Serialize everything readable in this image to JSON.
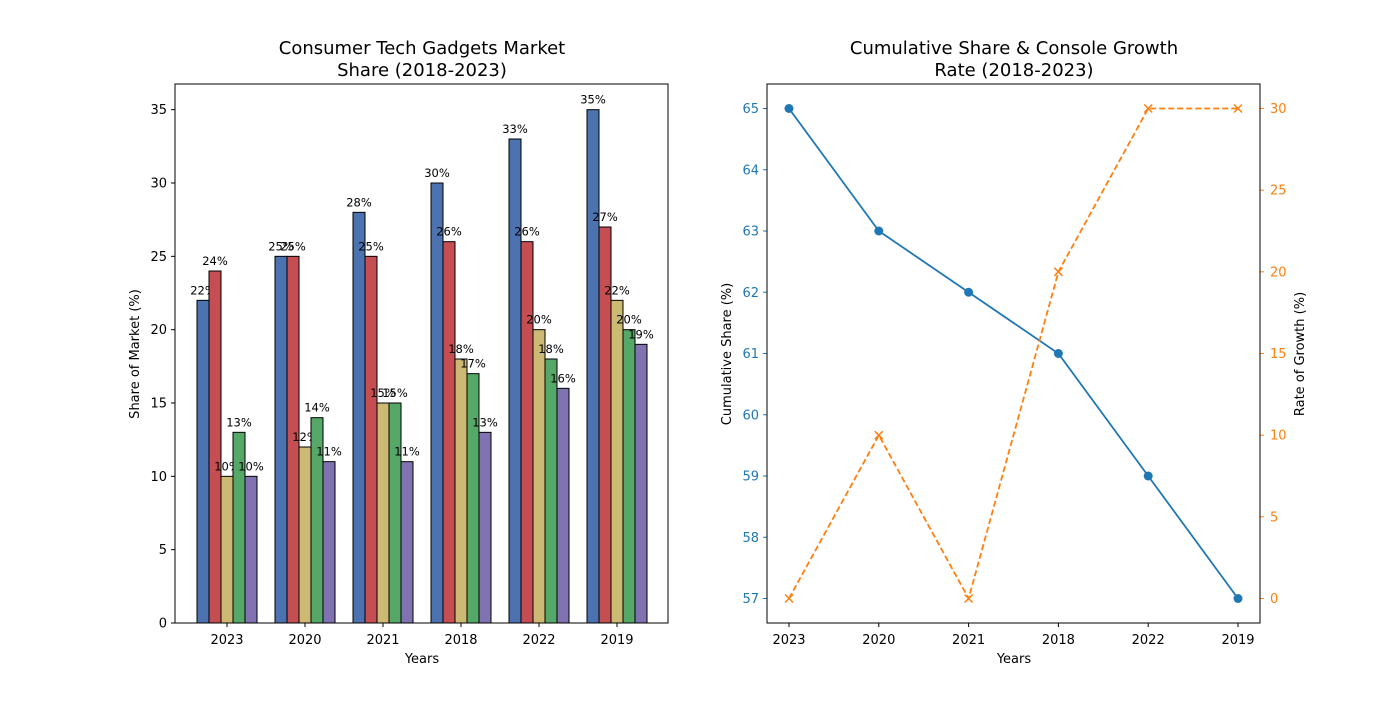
{
  "chart_data": [
    {
      "type": "bar",
      "title_line1": "Consumer Tech Gadgets Market",
      "title_line2": "Share (2018-2023)",
      "xlabel": "Years",
      "ylabel": "Share of Market (%)",
      "ylim": [
        0,
        36.75
      ],
      "yticks": [
        "0",
        "5",
        "10",
        "15",
        "20",
        "25",
        "30",
        "35"
      ],
      "categories": [
        "2023",
        "2020",
        "2021",
        "2018",
        "2022",
        "2019"
      ],
      "series": [
        {
          "color": "#4c72b0",
          "values": [
            22,
            25,
            28,
            30,
            33,
            35
          ],
          "labels": [
            "22%",
            "25%",
            "28%",
            "30%",
            "33%",
            "35%"
          ]
        },
        {
          "color": "#c44e52",
          "values": [
            24,
            25,
            25,
            26,
            26,
            27
          ],
          "labels": [
            "24%",
            "25%",
            "25%",
            "26%",
            "26%",
            "27%"
          ]
        },
        {
          "color": "#ccb974",
          "values": [
            10,
            12,
            15,
            18,
            20,
            22
          ],
          "labels": [
            "10%",
            "12%",
            "15%",
            "18%",
            "20%",
            "22%"
          ]
        },
        {
          "color": "#55a868",
          "values": [
            13,
            14,
            15,
            17,
            18,
            20
          ],
          "labels": [
            "13%",
            "14%",
            "15%",
            "17%",
            "18%",
            "20%"
          ]
        },
        {
          "color": "#8172b2",
          "values": [
            10,
            11,
            11,
            13,
            16,
            19
          ],
          "labels": [
            "10%",
            "11%",
            "11%",
            "13%",
            "16%",
            "19%"
          ]
        }
      ],
      "grid": false,
      "legend": "none"
    },
    {
      "type": "line",
      "title_line1": "Cumulative Share & Console Growth",
      "title_line2": "Rate (2018-2023)",
      "xlabel": "Years",
      "ylabel_left": "Cumulative Share (%)",
      "ylabel_right": "Rate of Growth (%)",
      "categories": [
        "2023",
        "2020",
        "2021",
        "2018",
        "2022",
        "2019"
      ],
      "ylim_left": [
        56.6,
        65.4
      ],
      "ylim_right": [
        -1.5,
        31.5
      ],
      "yticks_left": [
        "57",
        "58",
        "59",
        "60",
        "61",
        "62",
        "63",
        "64",
        "65"
      ],
      "yticks_right": [
        "0",
        "5",
        "10",
        "15",
        "20",
        "25",
        "30"
      ],
      "series": [
        {
          "axis": "left",
          "color": "#1f77b4",
          "marker": "circle",
          "linestyle": "solid",
          "values": [
            65,
            63,
            62,
            61,
            59,
            57
          ]
        },
        {
          "axis": "right",
          "color": "#ff7f0e",
          "marker": "x",
          "linestyle": "dashed",
          "values": [
            0,
            10,
            0,
            20,
            30,
            30
          ]
        }
      ],
      "grid": false,
      "legend": "none"
    }
  ]
}
